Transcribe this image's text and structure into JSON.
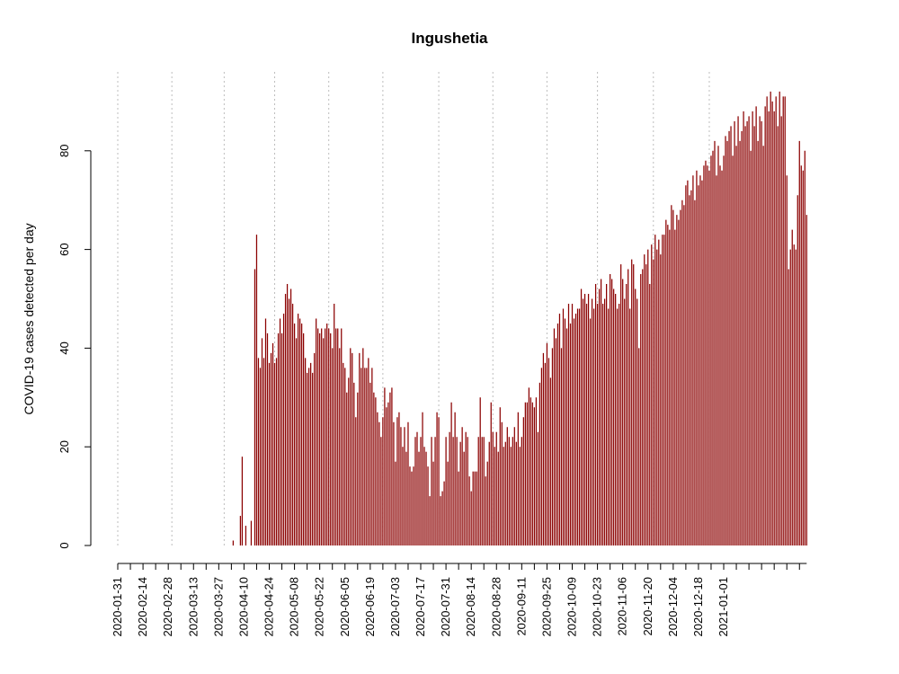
{
  "chart_data": {
    "type": "bar",
    "title": "Ingushetia",
    "xlabel": "",
    "ylabel": "COVID-19 cases detected per day",
    "ylim": [
      0,
      92
    ],
    "yticks": [
      0,
      20,
      40,
      60,
      80
    ],
    "x_start": "2020-01-31",
    "xticks": [
      "2020-01-31",
      "2020-02-14",
      "2020-02-28",
      "2020-03-13",
      "2020-03-27",
      "2020-04-10",
      "2020-04-24",
      "2020-05-08",
      "2020-05-22",
      "2020-06-05",
      "2020-06-19",
      "2020-07-03",
      "2020-07-17",
      "2020-07-31",
      "2020-08-14",
      "2020-08-28",
      "2020-09-11",
      "2020-09-25",
      "2020-10-09",
      "2020-10-23",
      "2020-11-06",
      "2020-11-20",
      "2020-12-04",
      "2020-12-18",
      "2021-01-01"
    ],
    "vgrid_dates": [
      "2020-01-31",
      "2020-03-01",
      "2020-03-30",
      "2020-04-27",
      "2020-05-27",
      "2020-06-26",
      "2020-07-27",
      "2020-08-26",
      "2020-09-25",
      "2020-10-23",
      "2020-11-23",
      "2020-12-24"
    ],
    "grid": "vertical-dotted",
    "bar_color": "#8b0000",
    "values": [
      0,
      0,
      0,
      0,
      0,
      0,
      0,
      0,
      0,
      0,
      0,
      0,
      0,
      0,
      0,
      0,
      0,
      0,
      0,
      0,
      0,
      0,
      0,
      0,
      0,
      0,
      0,
      0,
      0,
      0,
      0,
      0,
      0,
      0,
      0,
      0,
      0,
      0,
      0,
      0,
      0,
      0,
      0,
      0,
      0,
      0,
      0,
      0,
      0,
      0,
      0,
      0,
      0,
      0,
      0,
      0,
      0,
      0,
      0,
      0,
      0,
      0,
      0,
      0,
      1,
      0,
      0,
      0,
      6,
      18,
      0,
      4,
      0,
      0,
      5,
      0,
      56,
      63,
      38,
      36,
      42,
      38,
      46,
      43,
      37,
      39,
      41,
      37,
      38,
      43,
      46,
      43,
      47,
      51,
      53,
      50,
      52,
      49,
      45,
      42,
      47,
      46,
      45,
      43,
      38,
      35,
      36,
      37,
      35,
      39,
      46,
      44,
      43,
      44,
      42,
      44,
      45,
      44,
      43,
      40,
      49,
      44,
      44,
      40,
      44,
      37,
      36,
      31,
      34,
      40,
      39,
      33,
      26,
      31,
      39,
      36,
      40,
      36,
      36,
      38,
      33,
      36,
      31,
      30,
      27,
      25,
      22,
      26,
      32,
      28,
      29,
      31,
      32,
      25,
      17,
      26,
      27,
      24,
      20,
      24,
      19,
      25,
      16,
      15,
      16,
      22,
      23,
      19,
      22,
      27,
      20,
      19,
      16,
      10,
      22,
      17,
      22,
      27,
      26,
      10,
      11,
      13,
      22,
      17,
      23,
      29,
      22,
      27,
      22,
      15,
      21,
      24,
      19,
      23,
      22,
      14,
      11,
      15,
      15,
      15,
      22,
      30,
      22,
      22,
      14,
      17,
      21,
      29,
      23,
      20,
      23,
      19,
      28,
      25,
      20,
      21,
      24,
      22,
      20,
      22,
      24,
      21,
      27,
      20,
      22,
      26,
      29,
      29,
      32,
      30,
      29,
      28,
      30,
      23,
      33,
      36,
      39,
      37,
      41,
      38,
      34,
      40,
      44,
      42,
      45,
      47,
      40,
      48,
      46,
      44,
      49,
      45,
      49,
      46,
      47,
      48,
      48,
      52,
      50,
      51,
      49,
      51,
      46,
      50,
      48,
      53,
      49,
      52,
      54,
      49,
      50,
      53,
      48,
      55,
      54,
      52,
      51,
      48,
      49,
      57,
      54,
      50,
      53,
      56,
      48,
      58,
      57,
      52,
      50,
      40,
      55,
      56,
      59,
      57,
      60,
      53,
      61,
      58,
      63,
      60,
      62,
      59,
      63,
      63,
      66,
      65,
      64,
      69,
      68,
      64,
      67,
      66,
      68,
      70,
      69,
      73,
      74,
      71,
      72,
      75,
      70,
      76,
      73,
      75,
      74,
      77,
      78,
      77,
      76,
      79,
      80,
      82,
      75,
      81,
      77,
      76,
      79,
      83,
      82,
      84,
      85,
      79,
      86,
      81,
      87,
      82,
      84,
      88,
      85,
      86,
      87,
      80,
      88,
      85,
      89,
      82,
      87,
      86,
      81,
      89,
      91,
      88,
      92,
      90,
      88,
      91,
      85,
      92,
      87,
      91,
      91,
      75,
      56,
      60,
      64,
      61,
      60,
      71,
      82,
      77,
      76,
      80,
      67
    ]
  }
}
